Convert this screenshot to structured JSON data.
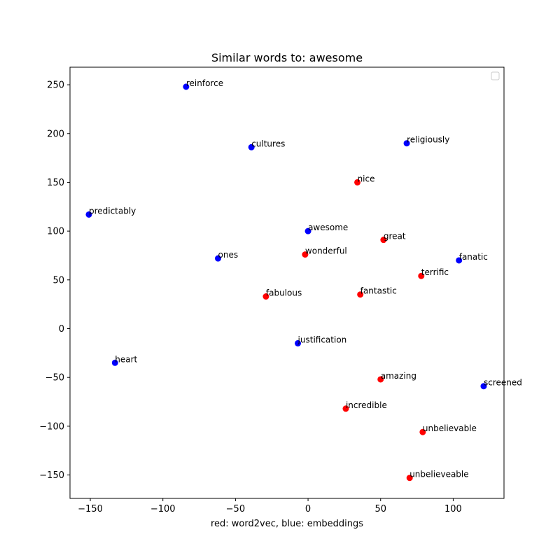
{
  "chart_data": {
    "type": "scatter",
    "title": "Similar words to: awesome",
    "xlabel": "red: word2vec, blue:  embeddings",
    "ylabel": "",
    "xlim": [
      -164,
      135
    ],
    "ylim": [
      -174,
      268
    ],
    "x_ticks": [
      -150,
      -100,
      -50,
      0,
      50,
      100
    ],
    "y_ticks": [
      -150,
      -100,
      -50,
      0,
      50,
      100,
      150,
      200,
      250
    ],
    "x_tick_labels": [
      "−150",
      "−100",
      "−50",
      "0",
      "50",
      "100"
    ],
    "y_tick_labels": [
      "−150",
      "−100",
      "−50",
      "0",
      "50",
      "100",
      "150",
      "200",
      "250"
    ],
    "grid": false,
    "legend": "top-right (empty)",
    "colors": {
      "red": "#ff0000",
      "blue": "#0000ff"
    },
    "points": [
      {
        "label": "reinforce",
        "x": -84,
        "y": 248,
        "color": "blue"
      },
      {
        "label": "cultures",
        "x": -39,
        "y": 186,
        "color": "blue"
      },
      {
        "label": "religiously",
        "x": 68,
        "y": 190,
        "color": "blue"
      },
      {
        "label": "nice",
        "x": 34,
        "y": 150,
        "color": "red"
      },
      {
        "label": "predictably",
        "x": -151,
        "y": 117,
        "color": "blue"
      },
      {
        "label": "awesome",
        "x": 0,
        "y": 100,
        "color": "blue"
      },
      {
        "label": "great",
        "x": 52,
        "y": 91,
        "color": "red"
      },
      {
        "label": "wonderful",
        "x": -2,
        "y": 76,
        "color": "red"
      },
      {
        "label": "ones",
        "x": -62,
        "y": 72,
        "color": "blue"
      },
      {
        "label": "fanatic",
        "x": 104,
        "y": 70,
        "color": "blue"
      },
      {
        "label": "terrific",
        "x": 78,
        "y": 54,
        "color": "red"
      },
      {
        "label": "fabulous",
        "x": -29,
        "y": 33,
        "color": "red"
      },
      {
        "label": "fantastic",
        "x": 36,
        "y": 35,
        "color": "red"
      },
      {
        "label": "justification",
        "x": -7,
        "y": -15,
        "color": "blue"
      },
      {
        "label": "heart",
        "x": -133,
        "y": -35,
        "color": "blue"
      },
      {
        "label": "amazing",
        "x": 50,
        "y": -52,
        "color": "red"
      },
      {
        "label": "screened",
        "x": 121,
        "y": -59,
        "color": "blue"
      },
      {
        "label": "incredible",
        "x": 26,
        "y": -82,
        "color": "red"
      },
      {
        "label": "unbelievable",
        "x": 79,
        "y": -106,
        "color": "red"
      },
      {
        "label": "unbelieveable",
        "x": 70,
        "y": -153,
        "color": "red"
      }
    ]
  }
}
